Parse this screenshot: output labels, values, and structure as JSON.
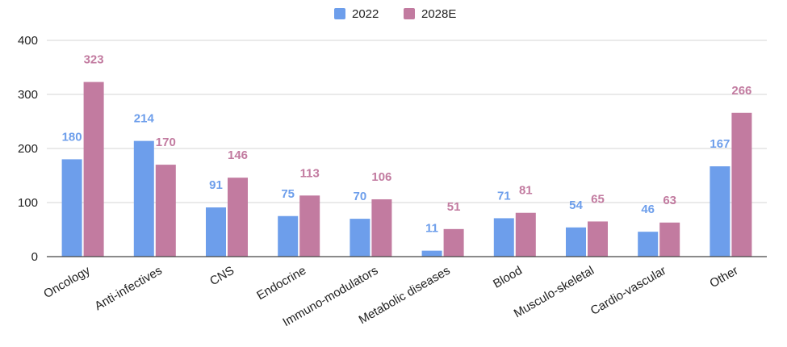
{
  "chart_data": {
    "type": "bar",
    "categories": [
      "Oncology",
      "Anti-infectives",
      "CNS",
      "Endocrine",
      "Immuno-modulators",
      "Metabolic diseases",
      "Blood",
      "Musculo-skeletal",
      "Cardio-vascular",
      "Other"
    ],
    "series": [
      {
        "name": "2022",
        "color": "#6d9eeb",
        "values": [
          180,
          214,
          91,
          75,
          70,
          11,
          71,
          54,
          46,
          167
        ]
      },
      {
        "name": "2028E",
        "color": "#c27ba0",
        "values": [
          323,
          170,
          146,
          113,
          106,
          51,
          81,
          65,
          63,
          266
        ]
      }
    ],
    "ylim": [
      0,
      400
    ],
    "yticks": [
      0,
      100,
      200,
      300,
      400
    ],
    "grid": true,
    "legend_position": "top-center",
    "title": "",
    "xlabel": "",
    "ylabel": ""
  }
}
